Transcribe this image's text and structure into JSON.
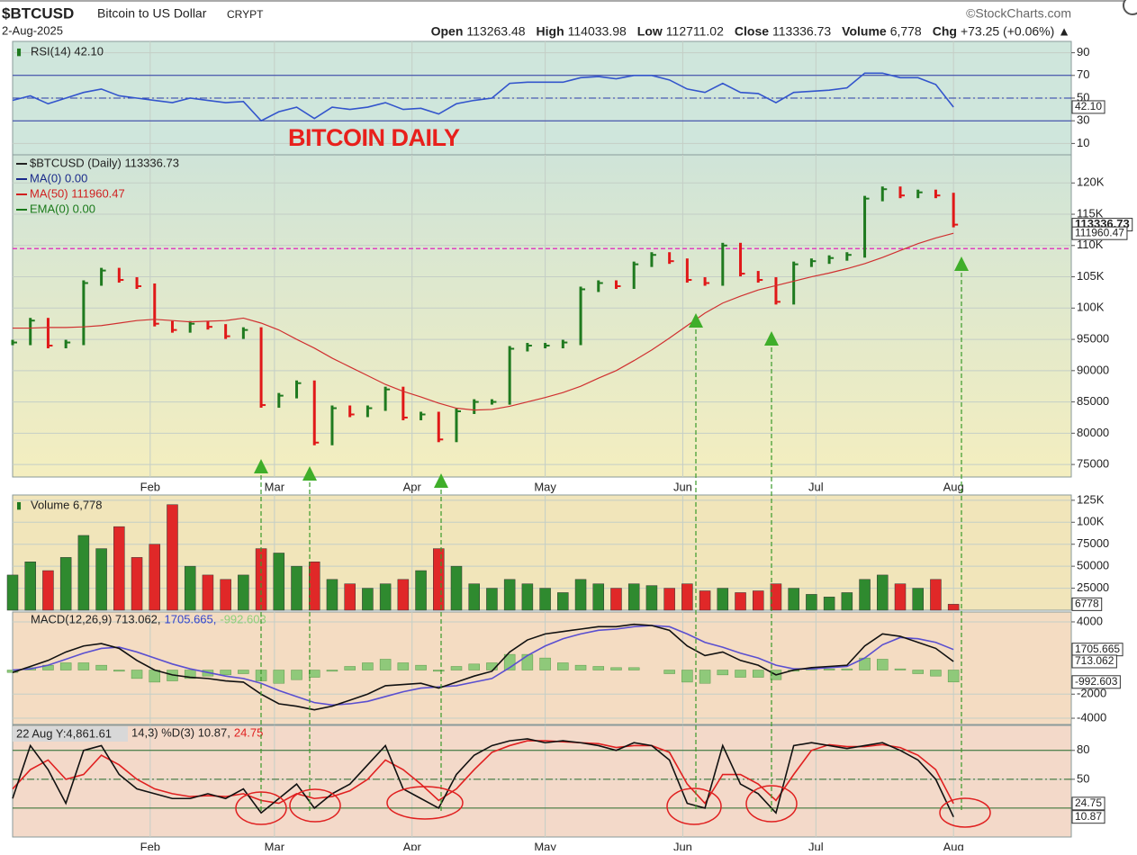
{
  "header": {
    "symbol": "$BTCUSD",
    "name": "Bitcoin to US Dollar",
    "exchange": "CRYPT",
    "source": "©StockCharts.com",
    "date": "2-Aug-2025",
    "quote": [
      {
        "label": "Open",
        "value": "113263.48"
      },
      {
        "label": "High",
        "value": "114033.98"
      },
      {
        "label": "Low",
        "value": "112711.02"
      },
      {
        "label": "Close",
        "value": "113336.73"
      },
      {
        "label": "Volume",
        "value": "6,778"
      },
      {
        "label": "Chg",
        "value": "+73.25 (+0.06%) ▲"
      }
    ]
  },
  "chart_data": [
    {
      "type": "line",
      "title": "RSI(14) 42.10",
      "ylim": [
        0,
        100
      ],
      "yticks": [
        90,
        70,
        50,
        30,
        10
      ],
      "levels": [
        70,
        50,
        30
      ],
      "series": [
        {
          "color": "#3355cc",
          "box": true,
          "values": [
            48,
            52,
            45,
            50,
            55,
            58,
            52,
            50,
            48,
            46,
            50,
            48,
            46,
            47,
            30,
            38,
            42,
            32,
            42,
            40,
            42,
            46,
            40,
            41,
            36,
            45,
            48,
            50,
            63,
            64,
            64,
            64,
            68,
            69,
            67,
            70,
            70,
            66,
            58,
            55,
            63,
            55,
            54,
            46,
            55,
            56,
            57,
            59,
            72,
            72,
            68,
            68,
            62,
            42.1
          ],
          "value_labels": [
            null,
            null,
            null,
            null,
            null,
            null,
            null,
            null,
            null,
            null,
            null,
            null,
            null,
            null,
            null,
            null,
            null,
            null,
            null,
            null,
            null,
            null,
            null,
            null,
            null,
            null,
            null,
            null,
            null,
            null,
            null,
            null,
            null,
            null,
            null,
            null,
            null,
            null,
            null,
            null,
            null,
            null,
            null,
            null,
            null,
            null,
            null,
            null,
            null,
            null,
            null,
            null,
            null,
            "42.10"
          ]
        }
      ]
    },
    {
      "type": "combo",
      "annotation": "BITCOIN DAILY",
      "ylim": [
        73000,
        124500
      ],
      "yticks": [
        {
          "value": 120000,
          "label": "120K"
        },
        {
          "value": 115000,
          "label": "115K"
        },
        {
          "value": 110000,
          "label": "110K"
        },
        {
          "value": 105000,
          "label": "105K"
        },
        {
          "value": 100000,
          "label": "100K"
        },
        95000,
        90000,
        85000,
        80000,
        75000
      ],
      "xticks": [
        {
          "value": 7.75,
          "label": "Feb"
        },
        {
          "value": 14.75,
          "label": "Mar"
        },
        {
          "value": 22.5,
          "label": "Apr"
        },
        {
          "value": 30,
          "label": "May"
        },
        {
          "value": 37.75,
          "label": "Jun"
        },
        {
          "value": 45.25,
          "label": "Jul"
        },
        {
          "value": 53,
          "label": "Aug"
        }
      ],
      "reference_line": 109500,
      "reference_color": "#e040c0",
      "legend": [
        {
          "label": "$BTCUSD (Daily) 113336.73",
          "color": "#222"
        },
        {
          "label": "MA(0) 0.00",
          "color": "#1a2a8a"
        },
        {
          "label": "MA(50) 111960.47",
          "color": "#d02020"
        },
        {
          "label": "EMA(0) 0.00",
          "color": "#1a7a1a"
        }
      ],
      "up_color": "#1f7a1f",
      "down_color": "#e01818",
      "series": [
        {
          "type": "price",
          "color": "#222",
          "box": true,
          "values": [
            94500,
            98000,
            94000,
            94500,
            104000,
            106000,
            104500,
            103500,
            97500,
            96500,
            97500,
            97000,
            95500,
            96500,
            84500,
            86000,
            88000,
            78500,
            84000,
            83000,
            84000,
            87000,
            82500,
            83000,
            79000,
            83500,
            85000,
            85000,
            93500,
            94000,
            94000,
            94500,
            103000,
            104000,
            103500,
            107000,
            108500,
            107500,
            104500,
            104000,
            110000,
            105500,
            104500,
            101000,
            107000,
            107500,
            108000,
            108500,
            117500,
            119000,
            118000,
            118500,
            118000,
            113336.73
          ]
        },
        {
          "type": "line",
          "color": "#d03030",
          "box": true,
          "values": [
            96800,
            96800,
            96900,
            96900,
            97000,
            97200,
            97600,
            98000,
            98200,
            98000,
            97800,
            97900,
            98000,
            98400,
            97600,
            96500,
            95000,
            93600,
            92000,
            90600,
            89200,
            87800,
            86700,
            85800,
            84800,
            84000,
            83700,
            83800,
            84300,
            85000,
            85700,
            86500,
            87500,
            88800,
            90000,
            91600,
            93300,
            95200,
            97200,
            99200,
            100800,
            101900,
            102900,
            103600,
            104300,
            105000,
            105600,
            106300,
            107100,
            108100,
            109200,
            110300,
            111200,
            111960.47
          ]
        }
      ]
    },
    {
      "type": "bar",
      "title": "Volume 6,778",
      "ylim": [
        0,
        131000
      ],
      "yticks": [
        {
          "value": 125000,
          "label": "125K"
        },
        {
          "value": 100000,
          "label": "100K"
        },
        75000,
        50000,
        25000
      ],
      "up_color": "#2f8a2f",
      "down_color": "#e02828",
      "series": [
        {
          "color": "#222",
          "box": true,
          "values": [
            40000,
            55000,
            45000,
            60000,
            85000,
            70000,
            95000,
            60000,
            75000,
            120000,
            50000,
            40000,
            35000,
            40000,
            70000,
            65000,
            50000,
            55000,
            35000,
            30000,
            25000,
            30000,
            35000,
            45000,
            70000,
            50000,
            30000,
            25000,
            35000,
            30000,
            25000,
            20000,
            35000,
            30000,
            25000,
            30000,
            28000,
            25000,
            30000,
            22000,
            25000,
            20000,
            22000,
            30000,
            25000,
            18000,
            15000,
            20000,
            35000,
            40000,
            30000,
            25000,
            35000,
            6778
          ]
        }
      ]
    },
    {
      "type": "combo",
      "title_parts": [
        {
          "text": "MACD(12,26,9) 713.062,",
          "color": "#222"
        },
        {
          "text": "1705.665,",
          "color": "#3344cc"
        },
        {
          "text": "-992.603",
          "color": "#8fcf7a"
        }
      ],
      "ylim": [
        -4520,
        4820
      ],
      "yticks": [
        4000,
        -2000,
        -4000
      ],
      "series": [
        {
          "type": "bar",
          "color": "#8fc97a",
          "box": true,
          "values": [
            -200,
            200,
            400,
            600,
            600,
            400,
            -100,
            -700,
            -1000,
            -900,
            -700,
            -500,
            -400,
            -300,
            -900,
            -1100,
            -800,
            -600,
            -100,
            300,
            600,
            900,
            600,
            400,
            -100,
            300,
            500,
            600,
            1300,
            1300,
            1000,
            600,
            400,
            300,
            200,
            200,
            0,
            -300,
            -1000,
            -1100,
            -400,
            -600,
            -600,
            -800,
            -100,
            100,
            100,
            100,
            1000,
            900,
            100,
            -300,
            -500,
            -992.603
          ]
        },
        {
          "type": "line",
          "color": "#5a4fd0",
          "box": true,
          "values": [
            0,
            100,
            400,
            900,
            1400,
            1800,
            1900,
            1500,
            1000,
            500,
            100,
            -200,
            -500,
            -700,
            -1100,
            -1700,
            -2200,
            -2700,
            -2900,
            -2800,
            -2600,
            -2200,
            -1800,
            -1500,
            -1400,
            -1300,
            -1000,
            -700,
            200,
            1200,
            2000,
            2600,
            3000,
            3300,
            3400,
            3600,
            3700,
            3600,
            3000,
            2300,
            1900,
            1400,
            1000,
            400,
            100,
            100,
            200,
            300,
            1000,
            2100,
            2700,
            2600,
            2300,
            1705.665
          ]
        },
        {
          "type": "line",
          "color": "#111",
          "box": true,
          "values": [
            -200,
            300,
            800,
            1500,
            2000,
            2200,
            1800,
            800,
            0,
            -400,
            -600,
            -700,
            -900,
            -1000,
            -2000,
            -2800,
            -3000,
            -3300,
            -3000,
            -2500,
            -2000,
            -1300,
            -1200,
            -1100,
            -1500,
            -1000,
            -500,
            -100,
            1500,
            2500,
            3000,
            3200,
            3400,
            3600,
            3600,
            3800,
            3700,
            3300,
            2000,
            1200,
            1500,
            800,
            400,
            -400,
            0,
            200,
            300,
            400,
            2000,
            3000,
            2800,
            2300,
            1800,
            713.062
          ]
        }
      ]
    },
    {
      "type": "line",
      "cursor_label": "22 Aug Y:4,861.61",
      "title_parts": [
        {
          "text": "14,3) %D(3) 10.87,",
          "color": "#222"
        },
        {
          "text": "24.75",
          "color": "#e02020"
        }
      ],
      "ylim": [
        -10,
        106
      ],
      "yticks": [
        80,
        50
      ],
      "levels": [
        80,
        50,
        20
      ],
      "xticks": [
        {
          "value": 7.75,
          "label": "Feb"
        },
        {
          "value": 14.75,
          "label": "Mar"
        },
        {
          "value": 22.5,
          "label": "Apr"
        },
        {
          "value": 30,
          "label": "May"
        },
        {
          "value": 37.75,
          "label": "Jun"
        },
        {
          "value": 45.25,
          "label": "Jul"
        },
        {
          "value": 53,
          "label": "Aug"
        }
      ],
      "series": [
        {
          "color": "#e02020",
          "box": true,
          "values": [
            40,
            60,
            70,
            50,
            55,
            75,
            65,
            50,
            40,
            35,
            32,
            33,
            32,
            35,
            28,
            25,
            35,
            30,
            32,
            38,
            50,
            70,
            60,
            45,
            28,
            40,
            60,
            78,
            85,
            90,
            90,
            89,
            88,
            87,
            83,
            85,
            85,
            78,
            45,
            25,
            55,
            55,
            45,
            28,
            55,
            80,
            86,
            84,
            84,
            86,
            83,
            75,
            60,
            24.75
          ]
        },
        {
          "color": "#111",
          "box": true,
          "values": [
            30,
            85,
            60,
            25,
            80,
            85,
            55,
            40,
            35,
            30,
            30,
            35,
            30,
            40,
            15,
            30,
            45,
            20,
            35,
            45,
            65,
            85,
            40,
            30,
            20,
            55,
            75,
            85,
            90,
            92,
            88,
            90,
            88,
            85,
            80,
            88,
            85,
            70,
            25,
            20,
            85,
            45,
            35,
            15,
            85,
            88,
            85,
            82,
            85,
            88,
            80,
            70,
            50,
            10.87
          ]
        }
      ]
    }
  ]
}
